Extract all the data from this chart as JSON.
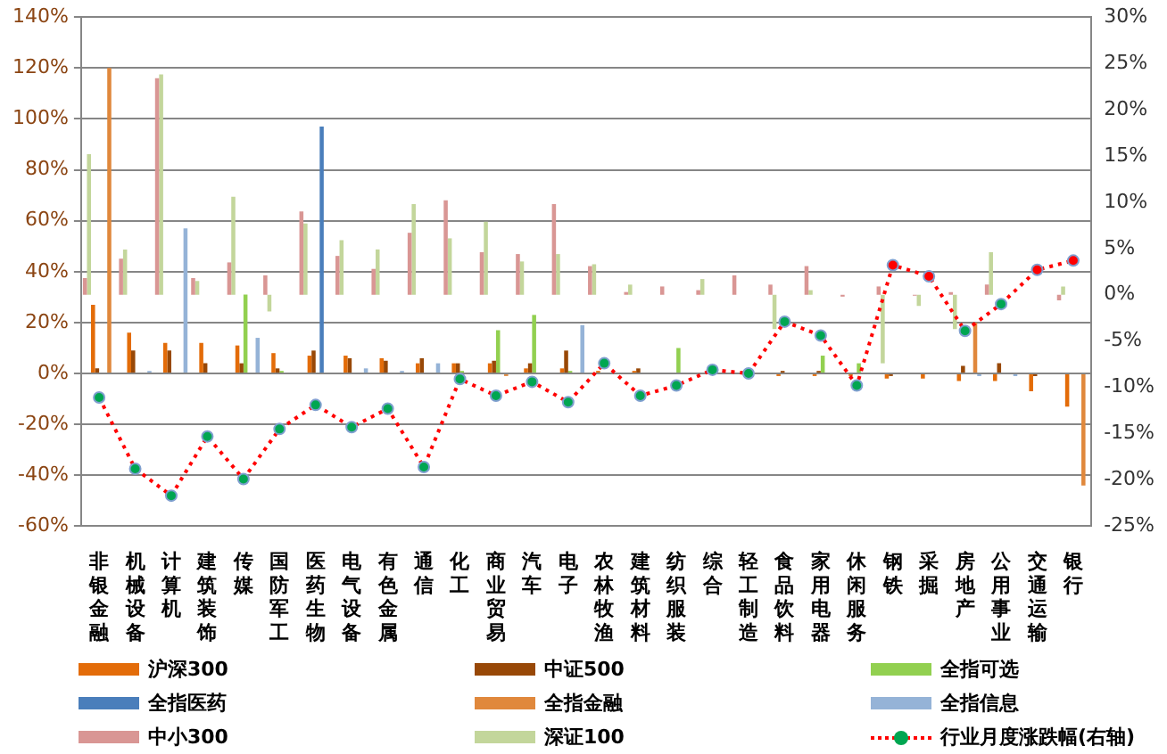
{
  "chart_data": {
    "type": "bar",
    "categories": [
      "非银金融",
      "机械设备",
      "计算机",
      "建筑装饰",
      "传媒",
      "国防军工",
      "医药生物",
      "电气设备",
      "有色金属",
      "通信",
      "化工",
      "商业贸易",
      "汽车",
      "电子",
      "农林牧渔",
      "建筑材料",
      "纺织服装",
      "综合",
      "轻工制造",
      "食品饮料",
      "家用电器",
      "休闲服务",
      "钢铁",
      "采掘",
      "房地产",
      "公用事业",
      "交通运输",
      "银行"
    ],
    "series": [
      {
        "name": "沪深300",
        "color": "#e36c09",
        "values": [
          27,
          16,
          12,
          12,
          11,
          8,
          7,
          7,
          6,
          4,
          4,
          4,
          2,
          2,
          1,
          1,
          null,
          null,
          null,
          -1,
          -1,
          -1,
          -2,
          -2,
          -3,
          -3,
          -7,
          -13
        ]
      },
      {
        "name": "中证500",
        "color": "#984807",
        "values": [
          2,
          9,
          9,
          4,
          4,
          2,
          9,
          6,
          5,
          6,
          4,
          5,
          4,
          9,
          null,
          2,
          null,
          null,
          null,
          1,
          1,
          null,
          -1,
          null,
          3,
          4,
          -1,
          null
        ]
      },
      {
        "name": "全指可选",
        "color": "#92d050",
        "values": [
          null,
          null,
          null,
          null,
          31,
          1,
          null,
          null,
          null,
          null,
          1,
          17,
          23,
          1,
          null,
          null,
          10,
          null,
          null,
          null,
          7,
          4,
          null,
          null,
          null,
          null,
          null,
          null
        ]
      },
      {
        "name": "全指医药",
        "color": "#4a7ebb",
        "values": [
          null,
          null,
          null,
          null,
          null,
          null,
          97,
          null,
          null,
          null,
          null,
          null,
          null,
          null,
          null,
          null,
          null,
          null,
          null,
          null,
          null,
          null,
          null,
          null,
          null,
          null,
          null,
          null
        ]
      },
      {
        "name": "全指金融",
        "color": "#e0883c",
        "values": [
          120,
          null,
          null,
          null,
          null,
          null,
          null,
          null,
          null,
          null,
          null,
          -1,
          null,
          null,
          null,
          null,
          null,
          null,
          null,
          null,
          null,
          null,
          null,
          null,
          20,
          null,
          null,
          -44
        ]
      },
      {
        "name": "全指信息",
        "color": "#95b3d7",
        "values": [
          null,
          1,
          57,
          null,
          14,
          null,
          null,
          2,
          1,
          4,
          null,
          null,
          null,
          19,
          null,
          null,
          null,
          null,
          null,
          null,
          null,
          null,
          null,
          null,
          -1,
          -1,
          null,
          null
        ]
      },
      {
        "name": "中小300",
        "color": "#d99694",
        "axis": "y2",
        "values": [
          1.8,
          3.9,
          23.4,
          1.8,
          3.5,
          2.1,
          9.0,
          4.2,
          2.8,
          6.7,
          10.2,
          4.6,
          4.4,
          9.8,
          3.1,
          0.3,
          0.9,
          0.5,
          2.1,
          1.1,
          3.1,
          -0.2,
          0.9,
          -0.1,
          0.3,
          1.1,
          null,
          -0.6
        ]
      },
      {
        "name": "深证100",
        "color": "#c3d69b",
        "axis": "y2",
        "values": [
          15.2,
          4.9,
          23.8,
          1.5,
          10.6,
          -1.8,
          7.7,
          5.9,
          4.9,
          9.8,
          6.1,
          7.9,
          3.6,
          4.4,
          3.3,
          1.1,
          null,
          1.7,
          null,
          -3.7,
          0.5,
          null,
          -7.4,
          -1.2,
          -3.7,
          4.6,
          null,
          0.9
        ]
      },
      {
        "name": "行业月度涨跌幅(右轴)",
        "type": "line",
        "axis": "y2",
        "color": "#ff0000",
        "colors": [
          "#00a651",
          "#00a651",
          "#00a651",
          "#00a651",
          "#00a651",
          "#00a651",
          "#00a651",
          "#00a651",
          "#00a651",
          "#00a651",
          "#00a651",
          "#00a651",
          "#00a651",
          "#00a651",
          "#00a651",
          "#00a651",
          "#00a651",
          "#00a651",
          "#00a651",
          "#00a651",
          "#00a651",
          "#00a651",
          "#ff0000",
          "#ff0000",
          "#00a651",
          "#00a651",
          "#ff0000",
          "#ff0000"
        ],
        "values": [
          -11.1,
          -18.8,
          -21.7,
          -15.3,
          -19.9,
          -14.5,
          -11.9,
          -14.3,
          -12.3,
          -18.6,
          -9.1,
          -10.9,
          -9.4,
          -11.6,
          -7.4,
          -10.9,
          -9.8,
          -8.1,
          -8.5,
          -2.9,
          -4.4,
          -9.8,
          3.2,
          2.0,
          -3.9,
          -1.0,
          2.7,
          3.7
        ]
      }
    ],
    "ylim": [
      -60,
      140
    ],
    "yticks": [
      {
        "value": -60,
        "label": "-60%"
      },
      {
        "value": -40,
        "label": "-40%"
      },
      {
        "value": -20,
        "label": "-20%"
      },
      {
        "value": 0,
        "label": "0%"
      },
      {
        "value": 20,
        "label": "20%"
      },
      {
        "value": 40,
        "label": "40%"
      },
      {
        "value": 60,
        "label": "60%"
      },
      {
        "value": 80,
        "label": "80%"
      },
      {
        "value": 100,
        "label": "100%"
      },
      {
        "value": 120,
        "label": "120%"
      },
      {
        "value": 140,
        "label": "140%"
      }
    ],
    "y2lim": [
      -25,
      30
    ],
    "y2ticks": [
      {
        "value": -25,
        "label": "-25%"
      },
      {
        "value": -20,
        "label": "-20%"
      },
      {
        "value": -15,
        "label": "-15%"
      },
      {
        "value": -10,
        "label": "-10%"
      },
      {
        "value": -5,
        "label": "-5%"
      },
      {
        "value": 0,
        "label": "0%"
      },
      {
        "value": 5,
        "label": "5%"
      },
      {
        "value": 10,
        "label": "10%"
      },
      {
        "value": 15,
        "label": "15%"
      },
      {
        "value": 20,
        "label": "20%"
      },
      {
        "value": 25,
        "label": "25%"
      },
      {
        "value": 30,
        "label": "30%"
      }
    ],
    "grid": "y",
    "legend": "bottom",
    "marker": "circle",
    "line_style": "dotted"
  }
}
